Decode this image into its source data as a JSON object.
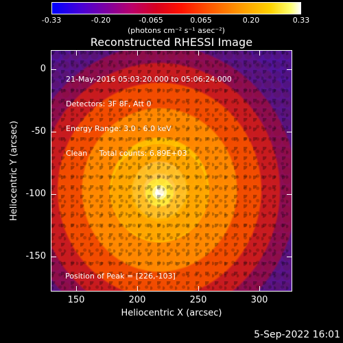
{
  "colorbar": {
    "ticks": [
      "-0.33",
      "-0.20",
      "-0.065",
      "0.065",
      "0.20",
      "0.33"
    ],
    "unit": "(photons cm⁻² s⁻¹ asec⁻²)"
  },
  "figure": {
    "title": "Reconstructed RHESSI Image",
    "info_lines": {
      "line1": "21-May-2016 05:03:20.000 to 05:06:24.000",
      "line2": "Detectors: 3F 8F, Att 0",
      "line3": "Energy Range: 3.0 - 6.0 keV",
      "line4": "Clean     Total counts: 6.89E+03"
    },
    "peak": "Position of Peak = [226,-103]",
    "xlabel": "Heliocentric X (arcsec)",
    "ylabel": "Heliocentric Y (arcsec)",
    "xticks": [
      "150",
      "200",
      "250",
      "300"
    ],
    "yticks": [
      "0",
      "-50",
      "-100",
      "-150"
    ]
  },
  "footer": {
    "date": "5-Sep-2022 16:01"
  }
}
